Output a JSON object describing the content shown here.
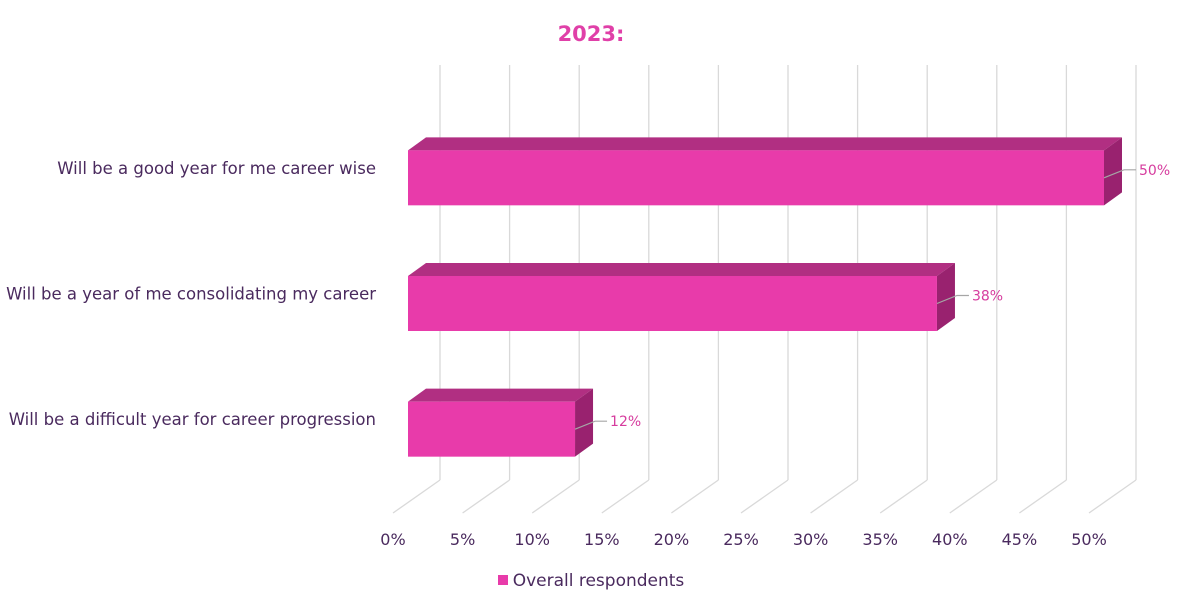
{
  "chart_data": {
    "type": "bar",
    "orientation": "horizontal",
    "three_d": true,
    "title": "2023:",
    "categories": [
      "Will be a good year for me career wise",
      "Will be a year of me consolidating my career",
      "Will be a difficult year for career progression"
    ],
    "series": [
      {
        "name": "Overall respondents",
        "values": [
          50,
          38,
          12
        ]
      }
    ],
    "data_labels": [
      "50%",
      "38%",
      "12%"
    ],
    "x_ticks": [
      "0%",
      "5%",
      "10%",
      "15%",
      "20%",
      "25%",
      "30%",
      "35%",
      "40%",
      "45%",
      "50%"
    ],
    "xlim": [
      0,
      50
    ],
    "grid": true,
    "legend_position": "bottom",
    "colors": {
      "bar_front": "#E83BAA",
      "bar_top": "#B12F82",
      "bar_side": "#99226F",
      "title": "#E040A8",
      "label_text": "#4A2A5E",
      "data_label": "#D63C9E",
      "grid": "#D9D9D9"
    }
  }
}
